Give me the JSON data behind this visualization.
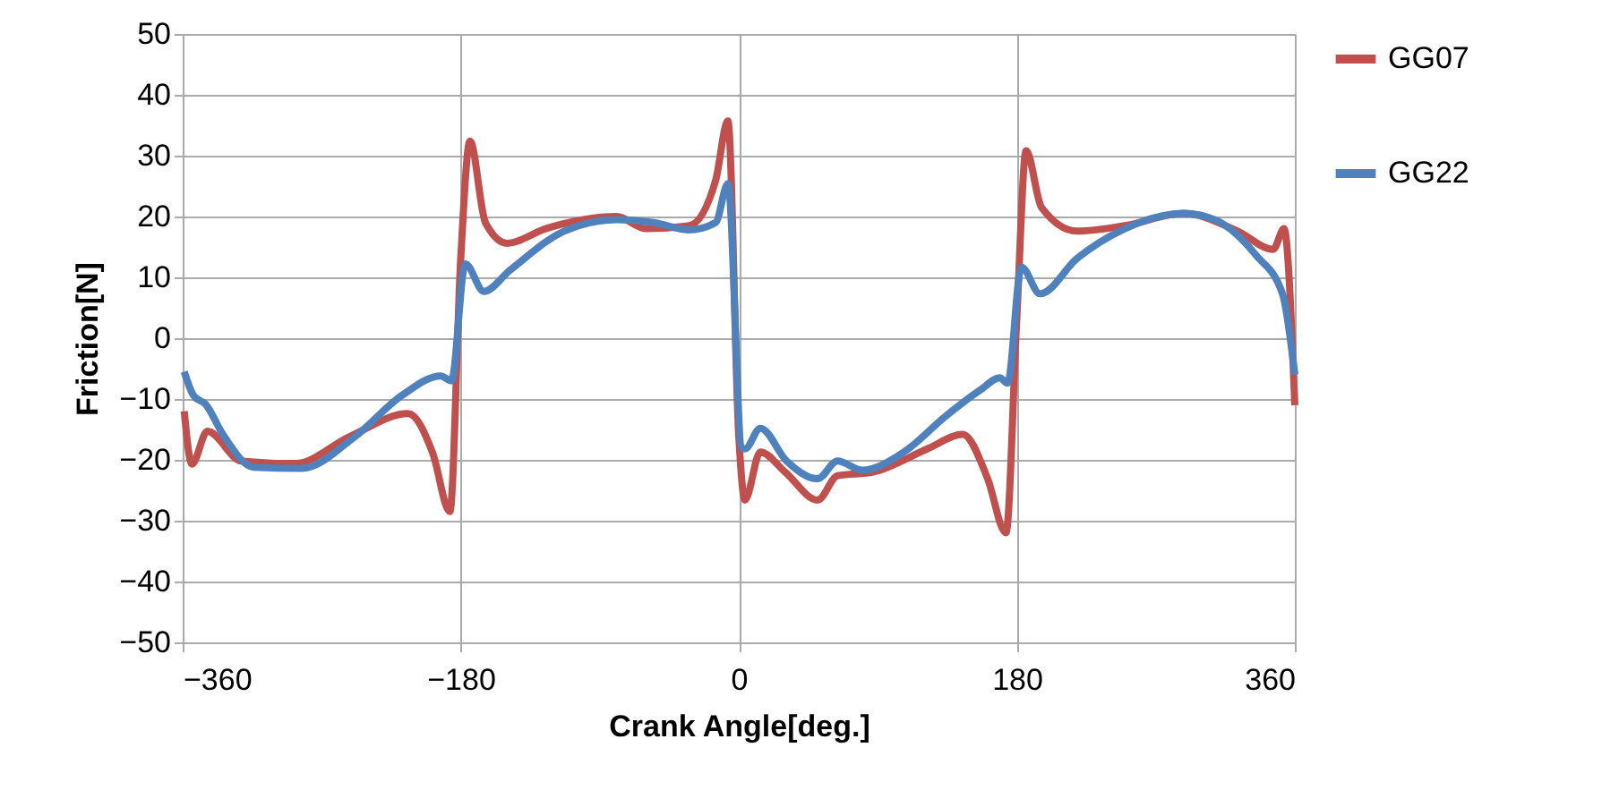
{
  "chart_data": {
    "type": "line",
    "xlabel": "Crank Angle[deg.]",
    "ylabel": "Friction[N]",
    "xlim": [
      -360,
      360
    ],
    "xticks": [
      -360,
      -180,
      0,
      180,
      360
    ],
    "ylim": [
      -50,
      50
    ],
    "yticks": [
      -50,
      -40,
      -30,
      -20,
      -10,
      0,
      10,
      20,
      30,
      40,
      50
    ],
    "grid": true,
    "legend": "right",
    "marker": "none",
    "line_style": "solid",
    "series": [
      {
        "name": "GG07",
        "color": "#c0504d",
        "x": [
          -359,
          -354,
          -344,
          -322,
          -287,
          -252,
          -214,
          -198,
          -187,
          -180,
          -174,
          -164,
          -150,
          -125,
          -79,
          -60,
          -32,
          -15,
          -7,
          0,
          4,
          14,
          30,
          51,
          64,
          87,
          122,
          145,
          161,
          173,
          180,
          186,
          196,
          219,
          250,
          288,
          323,
          346,
          353,
          360
        ],
        "values": [
          -12,
          -20.7,
          -15.3,
          -20.2,
          -20.6,
          -16.2,
          -12.4,
          -19,
          -28.5,
          13,
          32.4,
          19,
          15.6,
          18,
          20,
          18,
          18.5,
          25.9,
          35.7,
          -16,
          -26.6,
          -18.7,
          -22,
          -26.6,
          -22.6,
          -22,
          -18.2,
          -15.8,
          -23,
          -32,
          3.3,
          30.8,
          21.5,
          17.6,
          18.5,
          20.5,
          17.6,
          14.6,
          18,
          -11
        ]
      },
      {
        "name": "GG22",
        "color": "#4f81bd",
        "x": [
          -359,
          -353,
          -345,
          -334,
          -314,
          -283,
          -249,
          -218,
          -193,
          -186,
          -177,
          -165,
          -148,
          -113,
          -79,
          -55,
          -32,
          -15,
          -7,
          2,
          4,
          14,
          31,
          51,
          64,
          80,
          107,
          134,
          157,
          169,
          174,
          183,
          195,
          219,
          250,
          288,
          308,
          335,
          352,
          360
        ],
        "values": [
          -5.5,
          -9.4,
          -10.9,
          -15.8,
          -21.2,
          -21.4,
          -16.3,
          -9.4,
          -6.2,
          -7,
          12.2,
          7.7,
          11.2,
          17.6,
          19.5,
          19,
          17.8,
          19,
          25.4,
          -18,
          -18.2,
          -14.8,
          -20.2,
          -23.1,
          -20.2,
          -21.7,
          -18.7,
          -12.8,
          -8.4,
          -6.5,
          -7.4,
          11.7,
          7.3,
          13.1,
          18,
          20.5,
          19.5,
          13.6,
          7.3,
          -6
        ]
      }
    ]
  }
}
